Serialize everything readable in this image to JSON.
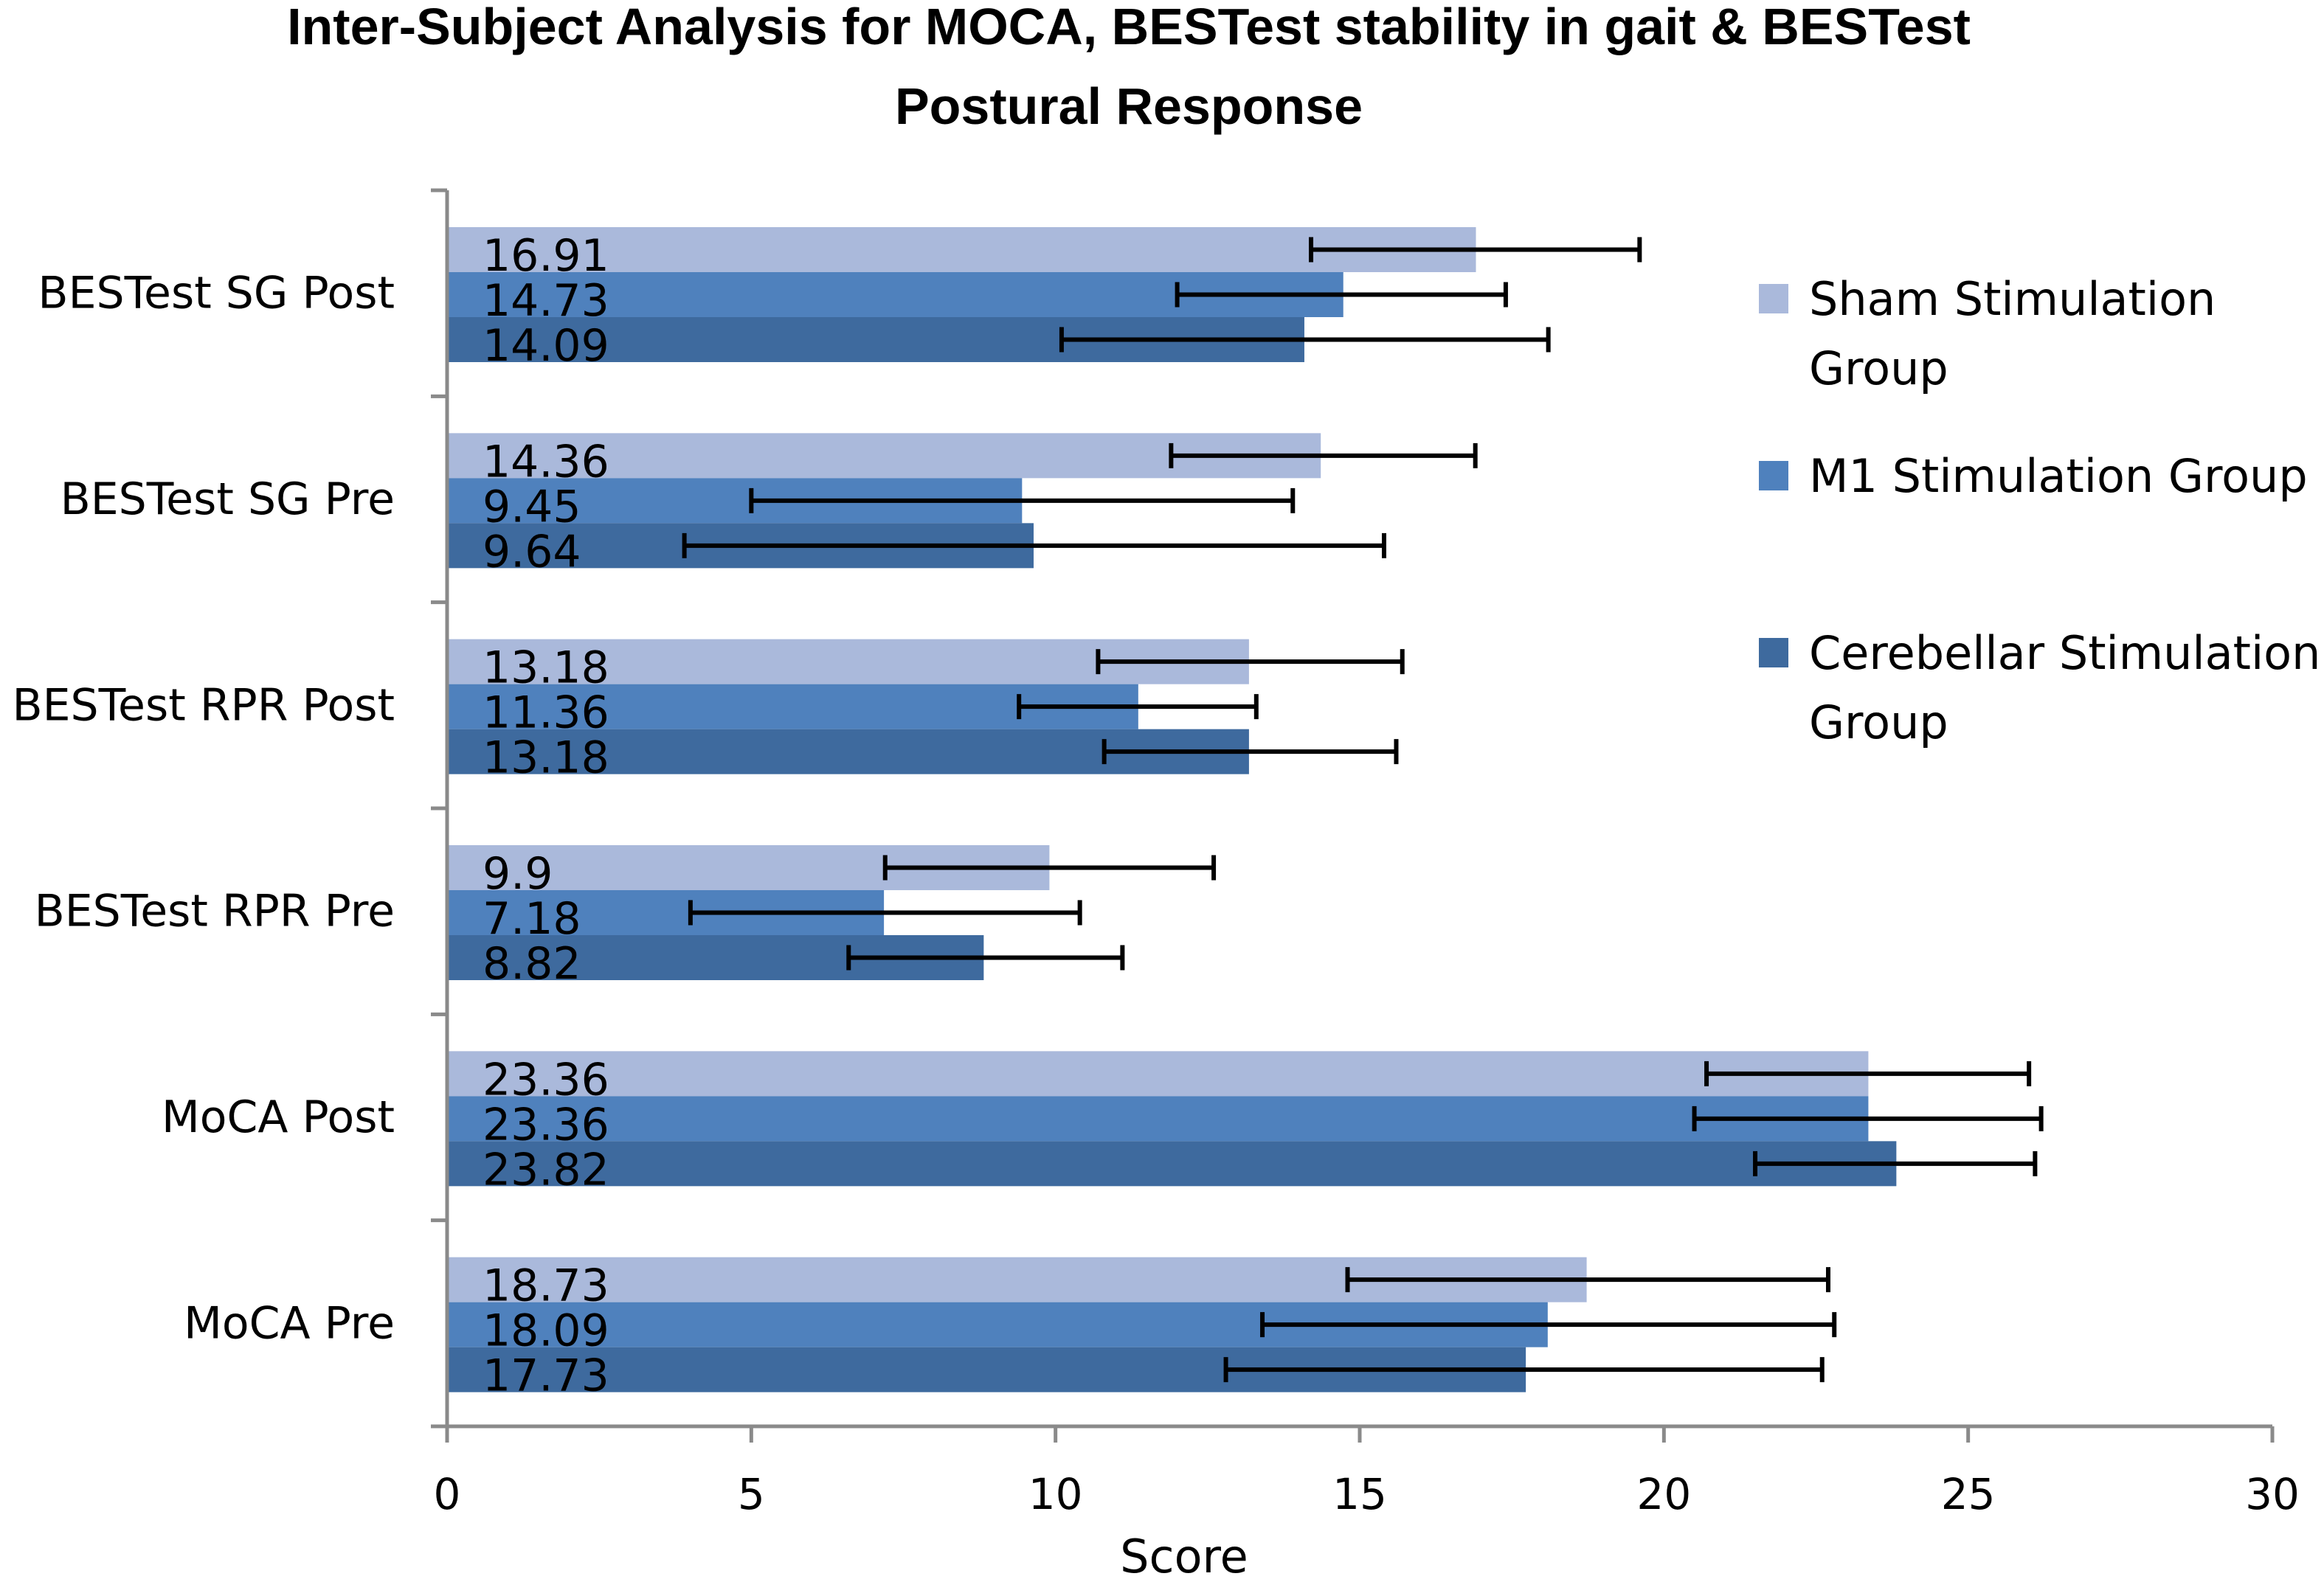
{
  "chart_data": {
    "type": "bar",
    "orientation": "horizontal",
    "title_lines": [
      "Inter-Subject Analysis for MOCA, BESTest stability in gait & BESTest",
      "Postural Response"
    ],
    "xlabel": "Score",
    "ylabel": "",
    "xlim": [
      0,
      30
    ],
    "xticks": [
      0,
      5,
      10,
      15,
      20,
      25,
      30
    ],
    "grid": false,
    "legend_position": "right",
    "categories": [
      "BESTest SG Post",
      "BESTest SG Pre",
      "BESTest RPR Post",
      "BESTest RPR Pre",
      "MoCA Post",
      "MoCA Pre"
    ],
    "series": [
      {
        "name": "Sham Stimulation Group",
        "legend_lines": [
          "Sham Stimulation",
          "Group"
        ],
        "color": "#aab9db",
        "values": [
          16.91,
          14.36,
          13.18,
          9.9,
          23.36,
          18.73
        ],
        "error_low": [
          14.2,
          11.9,
          10.7,
          7.2,
          20.7,
          14.8
        ],
        "error_high": [
          19.6,
          16.9,
          15.7,
          12.6,
          26.0,
          22.7
        ]
      },
      {
        "name": "M1 Stimulation Group",
        "legend_lines": [
          "M1 Stimulation Group"
        ],
        "color": "#4f81bd",
        "values": [
          14.73,
          9.45,
          11.36,
          7.18,
          23.36,
          18.09
        ],
        "error_low": [
          12.0,
          5.0,
          9.4,
          4.0,
          20.5,
          13.4
        ],
        "error_high": [
          17.4,
          13.9,
          13.3,
          10.4,
          26.2,
          22.8
        ]
      },
      {
        "name": "Cerebellar Stimulation Group",
        "legend_lines": [
          "Cerebellar Stimulation",
          "Group"
        ],
        "color": "#3e6a9e",
        "values": [
          14.09,
          9.64,
          13.18,
          8.82,
          23.82,
          17.73
        ],
        "error_low": [
          10.1,
          3.9,
          10.8,
          6.6,
          21.5,
          12.8
        ],
        "error_high": [
          18.1,
          15.4,
          15.6,
          11.1,
          26.1,
          22.6
        ]
      }
    ]
  }
}
